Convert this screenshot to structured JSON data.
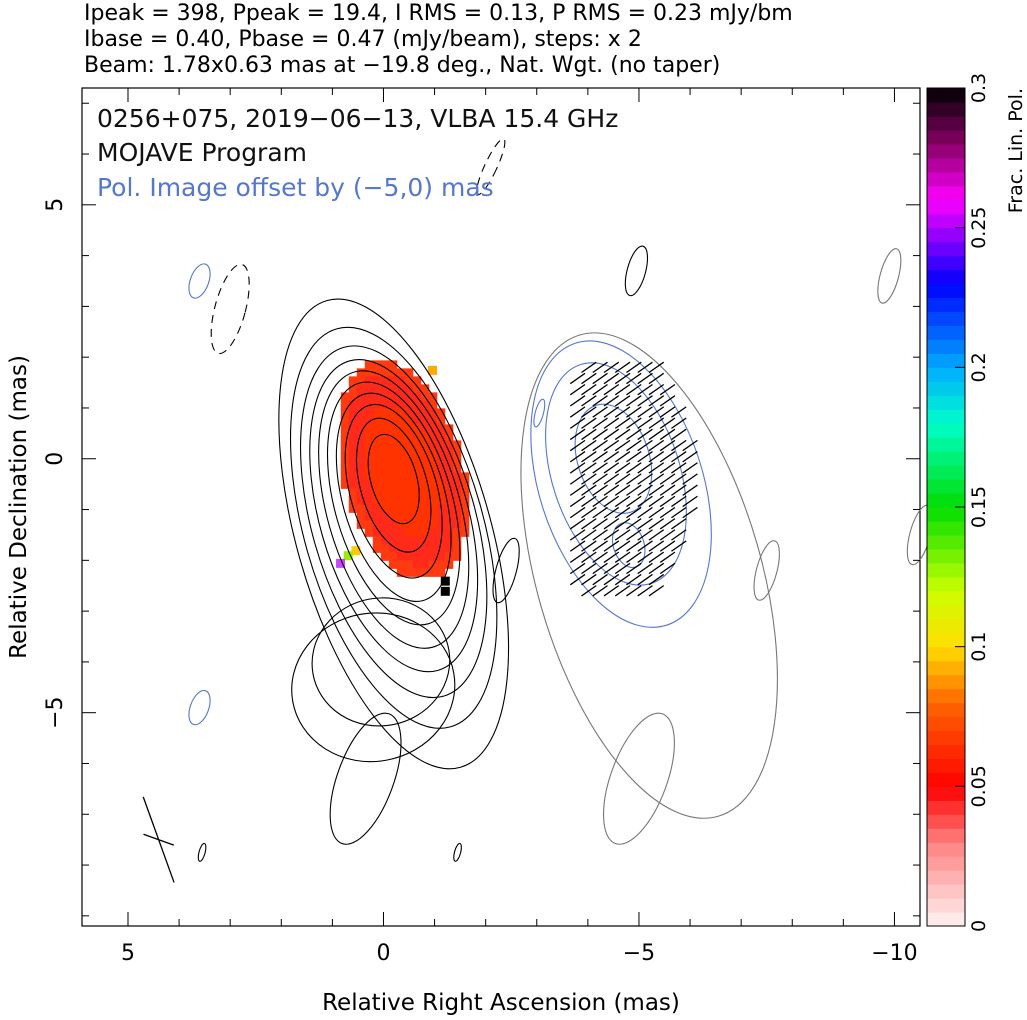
{
  "header": {
    "line1": "Ipeak = 398, Ppeak = 19.4, I RMS = 0.13, P RMS = 0.23 mJy/bm",
    "line2": "Ibase = 0.40, Pbase = 0.47 (mJy/beam), steps: x 2",
    "line3": "Beam: 1.78x0.63 mas at −19.8 deg., Nat. Wgt. (no taper)"
  },
  "chart_data": {
    "type": "heatmap",
    "title_lines": [
      "0256+075, 2019−06−13, VLBA 15.4 GHz",
      "MOJAVE Program"
    ],
    "annotation": "Pol. Image offset by (−5,0) mas",
    "xlabel": "Relative Right Ascension (mas)",
    "ylabel": "Relative Declination (mas)",
    "x_ticks": [
      {
        "v": 5,
        "label": "5"
      },
      {
        "v": 0,
        "label": "0"
      },
      {
        "v": -5,
        "label": "−5"
      },
      {
        "v": -10,
        "label": "−10"
      }
    ],
    "y_ticks": [
      {
        "v": 5,
        "label": "5"
      },
      {
        "v": 0,
        "label": "0"
      },
      {
        "v": -5,
        "label": "−5"
      }
    ],
    "xlim": [
      5.9,
      -10.5
    ],
    "ylim": [
      -9.2,
      7.3
    ],
    "x_minor": [
      1,
      2,
      3,
      4,
      6,
      7,
      8,
      9
    ],
    "y_minor": [
      1,
      2,
      3,
      4,
      6,
      7,
      8,
      9
    ],
    "colorbar": {
      "label": "Frac. Lin. Pol.",
      "min": 0,
      "max": 0.3,
      "ticks": [
        {
          "v": 0,
          "label": "0"
        },
        {
          "v": 0.05,
          "label": "0.05"
        },
        {
          "v": 0.1,
          "label": "0.1"
        },
        {
          "v": 0.15,
          "label": "0.15"
        },
        {
          "v": 0.2,
          "label": "0.2"
        },
        {
          "v": 0.25,
          "label": "0.25"
        },
        {
          "v": 0.3,
          "label": "0.3"
        }
      ]
    },
    "stokes_i": {
      "center": [
        -0.2,
        -0.4
      ],
      "peak_mjy_per_beam": 398,
      "contour_base_mjy_per_beam": 0.4,
      "contour_step_factor": 2,
      "contour_color": "#000000"
    },
    "polarized": {
      "offset_mas": [
        -5,
        0
      ],
      "peak_mjy_per_beam": 19.4,
      "contour_base_mjy_per_beam": 0.47,
      "contour_color": "#5577cc",
      "i_contour_color": "#777777",
      "evpa_color": "#000000"
    },
    "frac_pol_region": {
      "center": [
        -0.3,
        -0.15
      ],
      "value": 0.04,
      "color": "#ff3300"
    },
    "beam": {
      "major_mas": 1.78,
      "minor_mas": 0.63,
      "pa_deg": -19.8,
      "position": "bottom-left"
    }
  }
}
